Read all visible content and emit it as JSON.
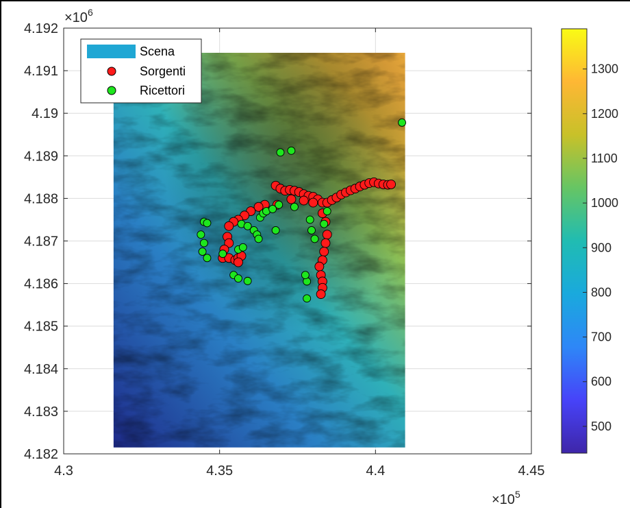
{
  "chart_data": {
    "type": "scatter",
    "x_multiplier": {
      "base": "×10",
      "exp": "5"
    },
    "y_multiplier": {
      "base": "×10",
      "exp": "6"
    },
    "xlim": [
      430000,
      445000
    ],
    "ylim": [
      4182000,
      4192000
    ],
    "xticks": [
      430000,
      435000,
      440000,
      445000
    ],
    "xtick_labels": [
      "4.3",
      "4.35",
      "4.4",
      "4.45"
    ],
    "yticks": [
      4182000,
      4183000,
      4184000,
      4185000,
      4186000,
      4187000,
      4188000,
      4189000,
      4190000,
      4191000,
      4192000
    ],
    "ytick_labels": [
      "4.182",
      "4.183",
      "4.184",
      "4.185",
      "4.186",
      "4.187",
      "4.188",
      "4.189",
      "4.19",
      "4.191",
      "4.192"
    ],
    "grid": true,
    "legend_position": "top-left",
    "scene_extent": {
      "x": [
        431600,
        440950
      ],
      "y": [
        4182150,
        4191420
      ]
    },
    "colorbar": {
      "range": [
        440,
        1390
      ],
      "ticks": [
        500,
        600,
        700,
        800,
        900,
        1000,
        1100,
        1200,
        1300
      ],
      "tick_labels": [
        "500",
        "600",
        "700",
        "800",
        "900",
        "1000",
        "1100",
        "1200",
        "1300"
      ],
      "colormap": [
        "#3e26a8",
        "#4743f9",
        "#2e87f7",
        "#1aa9dd",
        "#20bcb2",
        "#66c564",
        "#c8c129",
        "#feb734",
        "#f9fb15"
      ]
    },
    "series": [
      {
        "name": "Scena",
        "marker": "patch",
        "color": "#1fa7d4"
      },
      {
        "name": "Sorgenti",
        "marker": "circle",
        "color": "#ff1a1a",
        "points": [
          [
            436800,
            4188300
          ],
          [
            436950,
            4188230
          ],
          [
            437100,
            4188180
          ],
          [
            437250,
            4188200
          ],
          [
            437400,
            4188180
          ],
          [
            437550,
            4188150
          ],
          [
            437700,
            4188100
          ],
          [
            437850,
            4188060
          ],
          [
            438000,
            4188040
          ],
          [
            438150,
            4187980
          ],
          [
            438300,
            4187900
          ],
          [
            438450,
            4187900
          ],
          [
            438600,
            4187960
          ],
          [
            438750,
            4188020
          ],
          [
            438900,
            4188090
          ],
          [
            439050,
            4188140
          ],
          [
            439200,
            4188190
          ],
          [
            439350,
            4188230
          ],
          [
            439500,
            4188280
          ],
          [
            439650,
            4188320
          ],
          [
            439800,
            4188360
          ],
          [
            439950,
            4188380
          ],
          [
            440100,
            4188350
          ],
          [
            440250,
            4188330
          ],
          [
            440400,
            4188320
          ],
          [
            440500,
            4188330
          ],
          [
            438300,
            4187650
          ],
          [
            438400,
            4187450
          ],
          [
            438450,
            4187150
          ],
          [
            438400,
            4186950
          ],
          [
            438350,
            4186750
          ],
          [
            438300,
            4186550
          ],
          [
            438200,
            4186400
          ],
          [
            438250,
            4186200
          ],
          [
            438300,
            4186050
          ],
          [
            438300,
            4185900
          ],
          [
            438250,
            4185750
          ],
          [
            436850,
            4187850
          ],
          [
            436450,
            4187850
          ],
          [
            436250,
            4187800
          ],
          [
            436000,
            4187700
          ],
          [
            435800,
            4187600
          ],
          [
            435600,
            4187500
          ],
          [
            435450,
            4187450
          ],
          [
            435300,
            4187350
          ],
          [
            435250,
            4187100
          ],
          [
            435300,
            4186950
          ],
          [
            435150,
            4186800
          ],
          [
            435100,
            4186600
          ],
          [
            435300,
            4186600
          ],
          [
            435500,
            4186550
          ],
          [
            435600,
            4186600
          ],
          [
            435700,
            4186650
          ],
          [
            435600,
            4186500
          ],
          [
            437300,
            4187980
          ],
          [
            437700,
            4187950
          ],
          [
            438000,
            4187900
          ]
        ]
      },
      {
        "name": "Ricettori",
        "marker": "circle",
        "color": "#1ee61e",
        "points": [
          [
            440850,
            4189780
          ],
          [
            436950,
            4189080
          ],
          [
            437300,
            4189120
          ],
          [
            434500,
            4187450
          ],
          [
            434600,
            4187420
          ],
          [
            434400,
            4187150
          ],
          [
            434500,
            4186950
          ],
          [
            434450,
            4186750
          ],
          [
            434600,
            4186600
          ],
          [
            435100,
            4186700
          ],
          [
            435600,
            4186800
          ],
          [
            435750,
            4186850
          ],
          [
            435450,
            4186200
          ],
          [
            435600,
            4186120
          ],
          [
            435900,
            4186060
          ],
          [
            435700,
            4187400
          ],
          [
            435900,
            4187350
          ],
          [
            436100,
            4187250
          ],
          [
            436200,
            4187150
          ],
          [
            436250,
            4187050
          ],
          [
            436300,
            4187550
          ],
          [
            436400,
            4187650
          ],
          [
            436500,
            4187700
          ],
          [
            436700,
            4187750
          ],
          [
            436900,
            4187850
          ],
          [
            437400,
            4187800
          ],
          [
            436800,
            4187250
          ],
          [
            437800,
            4186050
          ],
          [
            437750,
            4186200
          ],
          [
            437800,
            4185650
          ],
          [
            437950,
            4187250
          ],
          [
            438050,
            4187050
          ],
          [
            438450,
            4187700
          ],
          [
            438350,
            4187400
          ],
          [
            437900,
            4187500
          ]
        ]
      }
    ]
  }
}
